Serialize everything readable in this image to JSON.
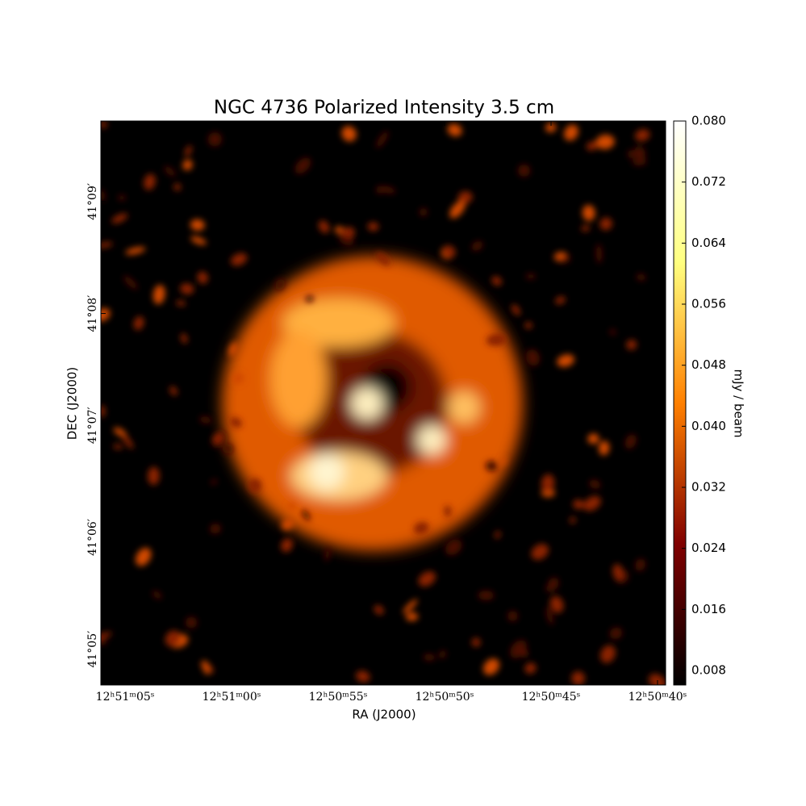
{
  "chart_data": {
    "type": "image",
    "title": "NGC 4736 Polarized Intensity 3.5 cm",
    "x_label": "RA (J2000)",
    "y_label": "DEC (J2000)",
    "colorbar_label": "mJy / beam",
    "xlim": [
      46266.14,
      46239.62
    ],
    "xticks": [
      {
        "value": 46265,
        "label": "12ʰ51ᵐ05ˢ"
      },
      {
        "value": 46260,
        "label": "12ʰ51ᵐ00ˢ"
      },
      {
        "value": 46255,
        "label": "12ʰ50ᵐ55ˢ"
      },
      {
        "value": 46250,
        "label": "12ʰ50ᵐ50ˢ"
      },
      {
        "value": 46245,
        "label": "12ʰ50ᵐ45ˢ"
      },
      {
        "value": 46240,
        "label": "12ʰ50ᵐ40ˢ"
      }
    ],
    "ylim": [
      2464.68,
      2469.72
    ],
    "yticks": [
      {
        "value": 2465,
        "label": "41°05′"
      },
      {
        "value": 2466,
        "label": "41°06′"
      },
      {
        "value": 2467,
        "label": "41°07′"
      },
      {
        "value": 2468,
        "label": "41°08′"
      },
      {
        "value": 2469,
        "label": "41°09′"
      }
    ],
    "clim": [
      0.0061,
      0.08
    ],
    "cticks": [
      {
        "value": 0.008,
        "label": "0.008"
      },
      {
        "value": 0.016,
        "label": "0.016"
      },
      {
        "value": 0.024,
        "label": "0.024"
      },
      {
        "value": 0.032,
        "label": "0.032"
      },
      {
        "value": 0.04,
        "label": "0.040"
      },
      {
        "value": 0.048,
        "label": "0.048"
      },
      {
        "value": 0.056,
        "label": "0.056"
      },
      {
        "value": 0.064,
        "label": "0.064"
      },
      {
        "value": 0.072,
        "label": "0.072"
      },
      {
        "value": 0.08,
        "label": "0.080"
      }
    ]
  }
}
